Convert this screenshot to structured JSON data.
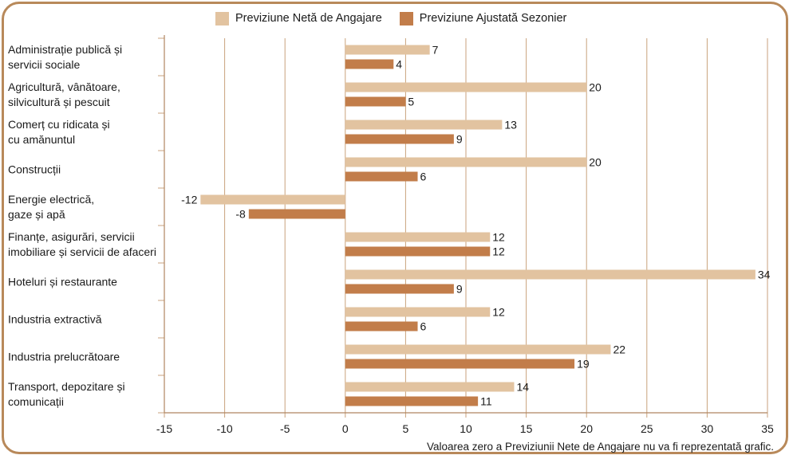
{
  "chart_data": {
    "type": "bar",
    "orientation": "horizontal",
    "title": "",
    "xlabel": "",
    "ylabel": "",
    "xlim": [
      -15,
      35
    ],
    "xticks": [
      -15,
      -10,
      -5,
      0,
      5,
      10,
      15,
      20,
      25,
      30,
      35
    ],
    "grid": true,
    "legend_position": "top-center",
    "categories": [
      [
        "Administrație publică și",
        "servicii sociale"
      ],
      [
        "Agricultură, vânătoare,",
        "silvicultură și pescuit"
      ],
      [
        "Comerț cu ridicata și",
        "cu amănuntul"
      ],
      [
        "Construcții"
      ],
      [
        "Energie electrică,",
        "gaze și apă"
      ],
      [
        "Finanțe, asigurări, servicii",
        "imobiliare și servicii de afaceri"
      ],
      [
        "Hoteluri și restaurante"
      ],
      [
        "Industria extractivă"
      ],
      [
        "Industria prelucrătoare"
      ],
      [
        "Transport, depozitare și",
        "comunicații"
      ]
    ],
    "series": [
      {
        "name": "Previziune Netă de Angajare",
        "color": "#e2c3a0",
        "values": [
          7,
          20,
          13,
          20,
          -12,
          12,
          34,
          12,
          22,
          14
        ]
      },
      {
        "name": "Previziune Ajustată Sezonier",
        "color": "#c27d4a",
        "values": [
          4,
          5,
          9,
          6,
          -8,
          12,
          9,
          6,
          19,
          11
        ]
      }
    ],
    "annotation": "Valoarea zero a Previziunii Nete de Angajare nu va fi reprezentată grafic."
  },
  "colors": {
    "frame": "#b8895a",
    "grid": "#c9a27c",
    "axis": "#b08560"
  }
}
